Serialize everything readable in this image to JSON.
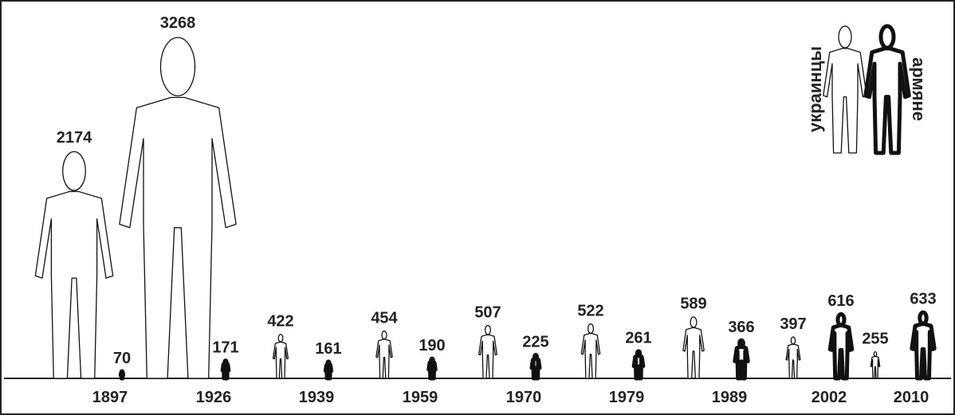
{
  "chart_data": {
    "type": "pictogram",
    "categories": [
      "1897",
      "1926",
      "1939",
      "1959",
      "1970",
      "1979",
      "1989",
      "2002",
      "2010"
    ],
    "series": [
      {
        "name": "украинцы",
        "color": "#ffffff",
        "values": [
          2174,
          3268,
          422,
          454,
          507,
          522,
          589,
          397,
          255
        ]
      },
      {
        "name": "армяне",
        "color": "#000000",
        "values": [
          70,
          171,
          161,
          190,
          225,
          261,
          366,
          616,
          633
        ]
      }
    ]
  }
}
